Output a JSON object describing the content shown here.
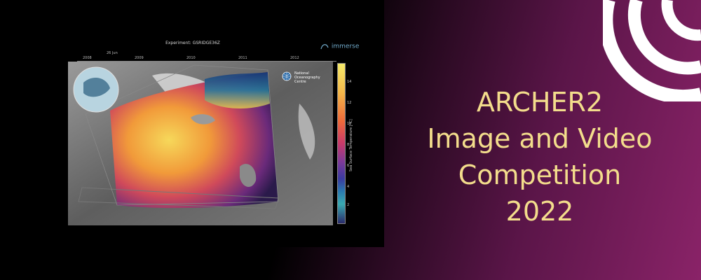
{
  "banner": {
    "title_lines": [
      "ARCHER2",
      "Image and Video",
      "Competition",
      "2022"
    ]
  },
  "figure": {
    "experiment_label": "Experiment: GSRIDGE36Z",
    "logo_text": "immerse",
    "timeline": {
      "marker_label": "26 Jun",
      "years": [
        "2008",
        "2009",
        "2010",
        "2011",
        "2012"
      ]
    },
    "noc_label": [
      "National",
      "Oceanography",
      "Centre"
    ],
    "colorbar": {
      "title": "Sea Surface Temperature [°C]",
      "ticks": [
        "14",
        "12",
        "10",
        "8",
        "6",
        "4",
        "2"
      ]
    }
  },
  "colors": {
    "title": "#f3dd8c",
    "gradient_end": "#8a2368"
  }
}
